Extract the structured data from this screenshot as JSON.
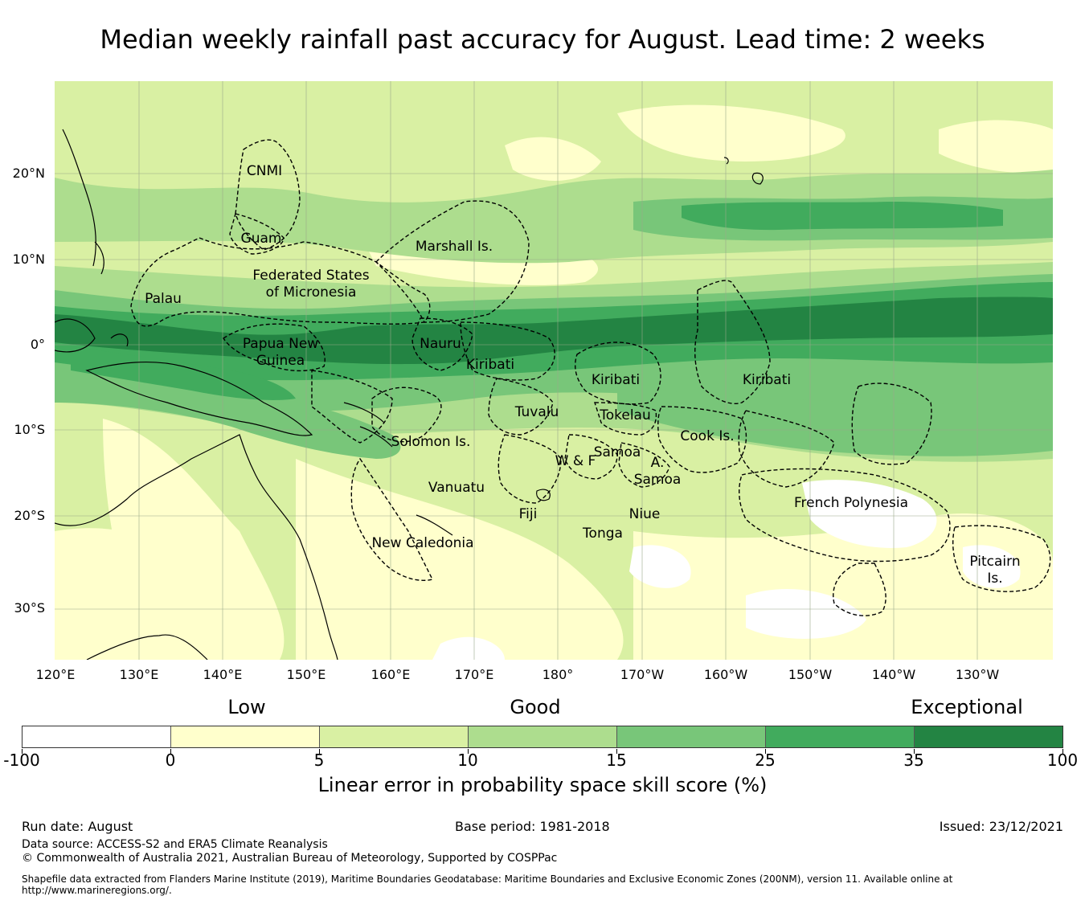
{
  "title": "Median weekly rainfall past accuracy for August. Lead time: 2 weeks",
  "map": {
    "lat_labels": [
      "20°N",
      "10°N",
      "0°",
      "10°S",
      "20°S",
      "30°S"
    ],
    "lon_labels": [
      "120°E",
      "130°E",
      "140°E",
      "150°E",
      "160°E",
      "170°E",
      "180°",
      "170°W",
      "160°W",
      "150°W",
      "140°W",
      "130°W"
    ],
    "regions": {
      "cnmi": "CNMI",
      "guam": "Guam",
      "marshall": "Marshall Is.",
      "fsm_1": "Federated States",
      "fsm_2": "of Micronesia",
      "palau": "Palau",
      "png_1": "Papua New",
      "png_2": "Guinea",
      "nauru": "Nauru",
      "kiribati_west": "Kiribati",
      "kiribati_central": "Kiribati",
      "kiribati_east": "Kiribati",
      "tuvalu": "Tuvalu",
      "tokelau": "Tokelau",
      "solomon": "Solomon Is.",
      "samoa": "Samoa",
      "wf": "W & F",
      "asamoa_1": "A.",
      "asamoa_2": "Samoa",
      "cook": "Cook Is.",
      "vanuatu": "Vanuatu",
      "fiji": "Fiji",
      "niue": "Niue",
      "tonga": "Tonga",
      "french_polynesia": "French Polynesia",
      "new_caledonia": "New Caledonia",
      "pitcairn_1": "Pitcairn",
      "pitcairn_2": "Is."
    },
    "skill_colors": {
      "below_0": "#ffffff",
      "0_5": "#ffffcc",
      "5_10": "#d9f0a3",
      "10_15": "#addd8e",
      "15_25": "#78c679",
      "25_35": "#41ab5d",
      "35_100": "#238443"
    }
  },
  "colorbar": {
    "headings": {
      "low": "Low",
      "good": "Good",
      "exceptional": "Exceptional"
    },
    "ticks": [
      "-100",
      "0",
      "5",
      "10",
      "15",
      "25",
      "35",
      "100"
    ],
    "label": "Linear error in probability space skill score (%)"
  },
  "footer": {
    "run_date": "Run date: August",
    "base_period": "Base period: 1981-2018",
    "issued": "Issued: 23/12/2021",
    "data_source": "Data source: ACCESS-S2 and ERA5 Climate Reanalysis",
    "copyright": "© Commonwealth of Australia 2021, Australian Bureau of Meteorology, Supported by COSPPac",
    "shapefile": "Shapefile data extracted from Flanders Marine Institute (2019), Maritime Boundaries Geodatabase: Maritime Boundaries and Exclusive Economic Zones (200NM), version 11. Available online at http://www.marineregions.org/."
  }
}
